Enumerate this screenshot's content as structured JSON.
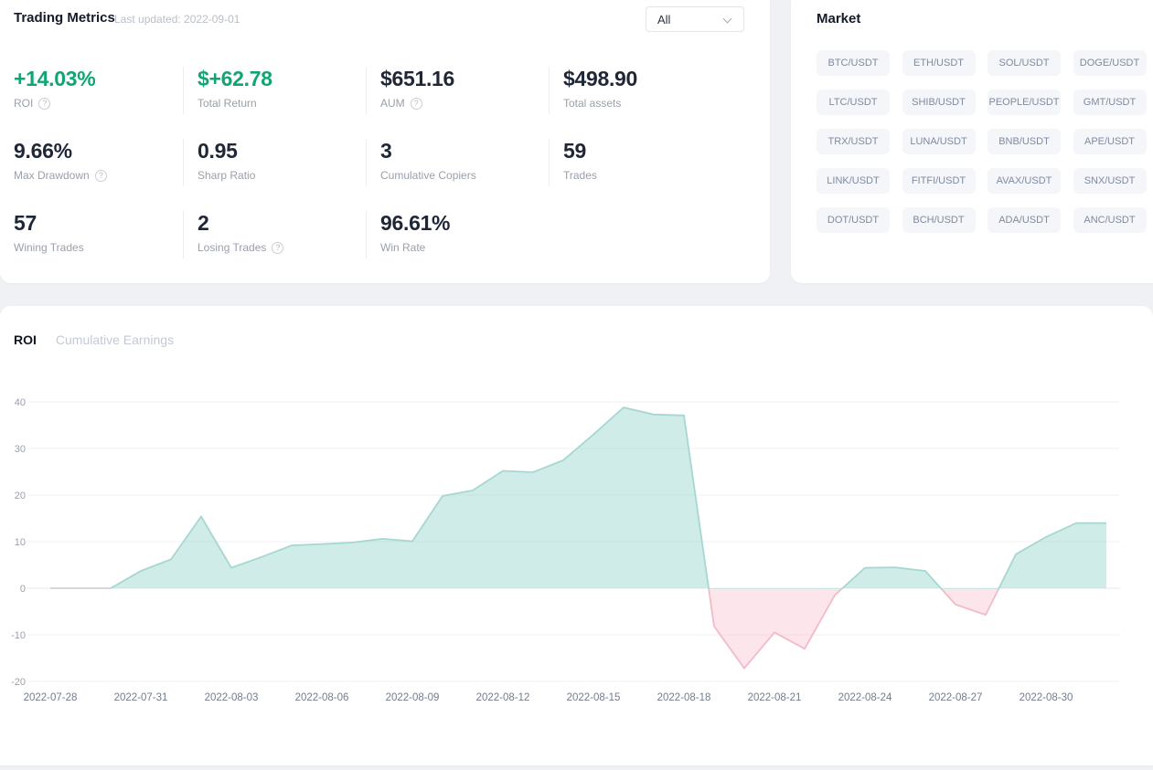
{
  "panel_metrics": {
    "title": "Trading Metrics",
    "last_updated": "Last updated: 2022-09-01",
    "filter": {
      "value": "All"
    },
    "metrics": [
      {
        "value": "+14.03%",
        "label": "ROI",
        "positive": true,
        "help": true
      },
      {
        "value": "$+62.78",
        "label": "Total Return",
        "positive": true,
        "help": false
      },
      {
        "value": "$651.16",
        "label": "AUM",
        "positive": false,
        "help": true
      },
      {
        "value": "$498.90",
        "label": "Total assets",
        "positive": false,
        "help": false
      },
      {
        "value": "9.66%",
        "label": "Max Drawdown",
        "positive": false,
        "help": true
      },
      {
        "value": "0.95",
        "label": "Sharp Ratio",
        "positive": false,
        "help": false
      },
      {
        "value": "3",
        "label": "Cumulative Copiers",
        "positive": false,
        "help": false
      },
      {
        "value": "59",
        "label": "Trades",
        "positive": false,
        "help": false
      },
      {
        "value": "57",
        "label": "Wining Trades",
        "positive": false,
        "help": false
      },
      {
        "value": "2",
        "label": "Losing Trades",
        "positive": false,
        "help": true
      },
      {
        "value": "96.61%",
        "label": "Win Rate",
        "positive": false,
        "help": false
      }
    ]
  },
  "panel_market": {
    "title": "Market",
    "pairs": [
      "BTC/USDT",
      "ETH/USDT",
      "SOL/USDT",
      "DOGE/USDT",
      "LTC/USDT",
      "SHIB/USDT",
      "PEOPLE/USDT",
      "GMT/USDT",
      "TRX/USDT",
      "LUNA/USDT",
      "BNB/USDT",
      "APE/USDT",
      "LINK/USDT",
      "FITFI/USDT",
      "AVAX/USDT",
      "SNX/USDT",
      "DOT/USDT",
      "BCH/USDT",
      "ADA/USDT",
      "ANC/USDT"
    ]
  },
  "chart_section": {
    "tabs": [
      {
        "label": "ROI",
        "active": true
      },
      {
        "label": "Cumulative Earnings",
        "active": false
      }
    ]
  },
  "chart_data": {
    "type": "area",
    "title": "ROI",
    "x": [
      "2022-07-28",
      "2022-07-29",
      "2022-07-30",
      "2022-07-31",
      "2022-08-01",
      "2022-08-02",
      "2022-08-03",
      "2022-08-04",
      "2022-08-05",
      "2022-08-06",
      "2022-08-07",
      "2022-08-08",
      "2022-08-09",
      "2022-08-10",
      "2022-08-11",
      "2022-08-12",
      "2022-08-13",
      "2022-08-14",
      "2022-08-15",
      "2022-08-16",
      "2022-08-17",
      "2022-08-18",
      "2022-08-19",
      "2022-08-20",
      "2022-08-21",
      "2022-08-22",
      "2022-08-23",
      "2022-08-24",
      "2022-08-25",
      "2022-08-26",
      "2022-08-27",
      "2022-08-28",
      "2022-08-29",
      "2022-08-30",
      "2022-08-31",
      "2022-09-01"
    ],
    "values": [
      0,
      0,
      0,
      3.7,
      6.2,
      15.4,
      4.4,
      6.7,
      9.2,
      9.5,
      9.8,
      10.6,
      10.1,
      19.8,
      21,
      25.2,
      24.9,
      27.5,
      33,
      38.8,
      37.3,
      37.1,
      -8.2,
      -17.2,
      -9.5,
      -13,
      -1.5,
      4.4,
      4.5,
      3.7,
      -3.5,
      -5.7,
      7.3,
      11,
      14,
      14
    ],
    "x_tick_interval": 3,
    "x_tick_labels": [
      "2022-07-28",
      "2022-07-31",
      "2022-08-03",
      "2022-08-06",
      "2022-08-09",
      "2022-08-12",
      "2022-08-15",
      "2022-08-18",
      "2022-08-21",
      "2022-08-24",
      "2022-08-27",
      "2022-08-30"
    ],
    "yticks": [
      40,
      30,
      20,
      10,
      0,
      -10,
      -20
    ],
    "ylim": [
      -20,
      40
    ],
    "grid": true,
    "legend": false,
    "positive_fill": "rgba(141,210,201,0.42)",
    "positive_line": "#a6d7d1",
    "negative_fill": "rgba(244,168,190,0.30)",
    "negative_line": "#f3bac9",
    "zero_flat_line": "#d5d9de"
  },
  "colors": {
    "accent_green": "#12a474",
    "value_dark": "#1f2736",
    "label_gray": "#99a0ac",
    "grid_line": "#f1f2f5",
    "zero_line": "#e5e8ec",
    "axis_text": "#9aa0ac",
    "x_axis_text": "#737c8c"
  }
}
